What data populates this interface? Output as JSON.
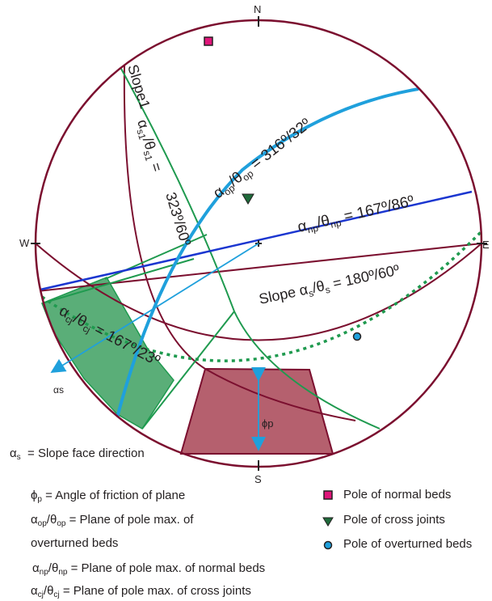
{
  "compass": {
    "north": "N",
    "south": "S",
    "east": "E",
    "west": "W"
  },
  "plane_labels": {
    "slope1_name": "Slope1",
    "slope1_value": "323º/60º",
    "op_value": "316º/32º",
    "np_value": "167º/86º",
    "slope_prefix": "Slope",
    "slope_value": "180º/60º",
    "cj_value": "167º/23º"
  },
  "vector_labels": {
    "slope_dir": "αs",
    "friction": "ϕp"
  },
  "legend_left": {
    "alpha_s_desc": "= Slope face direction",
    "friction_desc": "= Angle of friction of plane",
    "op_desc_line1": "= Plane of pole max. of",
    "op_desc_line2": "overturned beds",
    "np_desc": "= Plane of pole max. of normal beds",
    "cj_desc": "= Plane of pole max. of cross joints"
  },
  "legend_right": [
    {
      "label": "Pole of normal beds",
      "icon": "square-marker"
    },
    {
      "label": "Pole of cross joints",
      "icon": "triangle-marker"
    },
    {
      "label": "Pole of overturned beds",
      "icon": "circle-marker"
    }
  ],
  "colors": {
    "maroon": "#7b0f2f",
    "green": "#1f9a4f",
    "blue_np": "#1b36d0",
    "blue_op": "#1fa0dc",
    "wedge_green": "#5aae78",
    "wedge_maroon": "#b5606e",
    "pink": "#e0157a"
  }
}
